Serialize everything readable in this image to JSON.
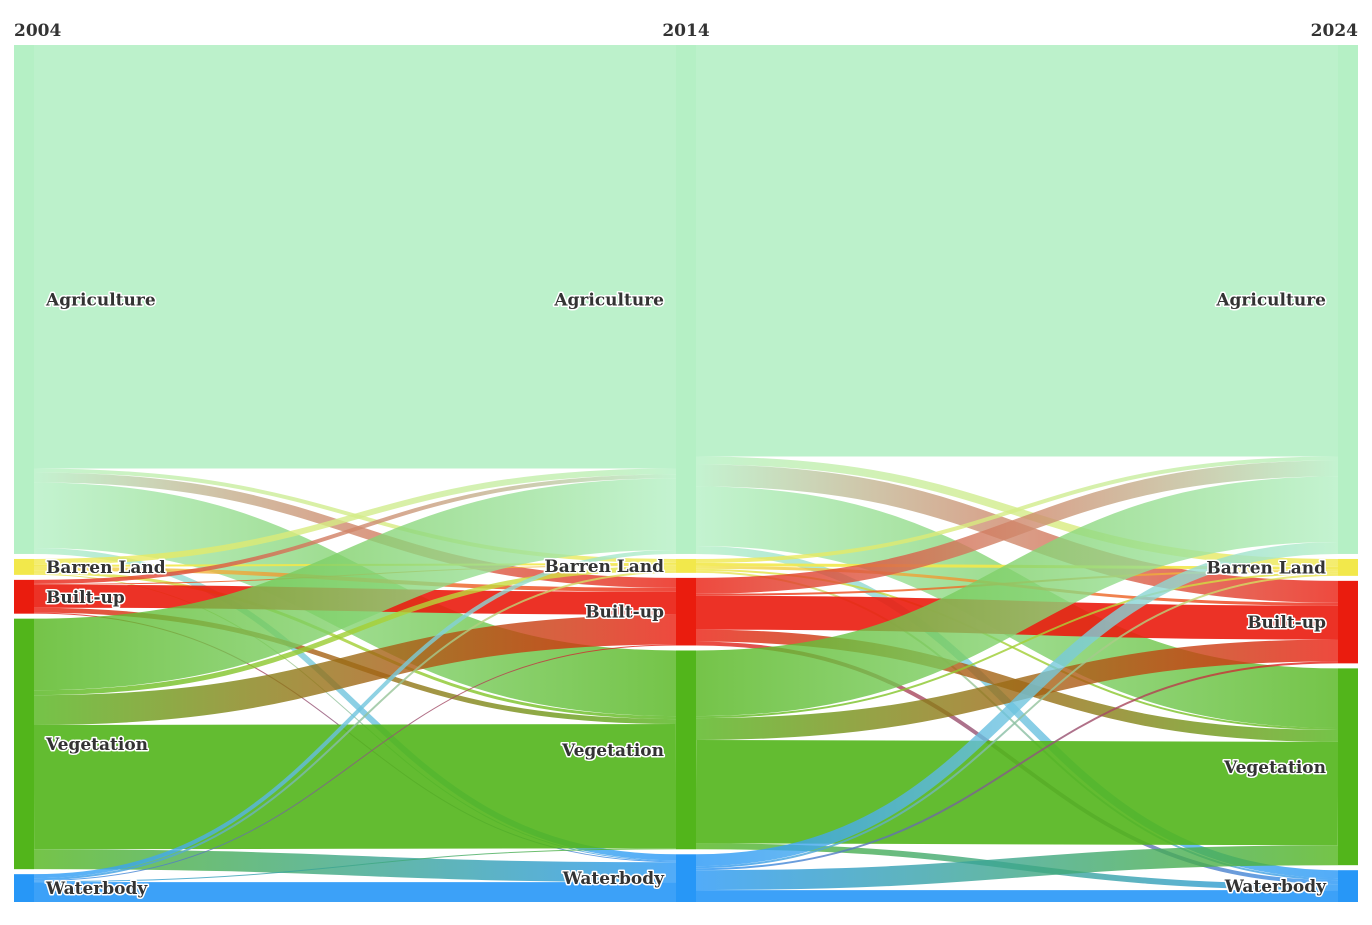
{
  "chart_data": {
    "type": "sankey",
    "years": [
      "2004",
      "2014",
      "2024"
    ],
    "categories": [
      "Agriculture",
      "Barren Land",
      "Built-up",
      "Vegetation",
      "Waterbody"
    ],
    "colors": {
      "Agriculture": "#b5f0c5",
      "Barren Land": "#f2e84b",
      "Built-up": "#ea1c0e",
      "Vegetation": "#52b51b",
      "Waterbody": "#2797f7"
    },
    "stage_totals": [
      {
        "year": "2004",
        "values": {
          "Agriculture": 512,
          "Barren Land": 16,
          "Built-up": 34,
          "Vegetation": 252,
          "Waterbody": 28
        }
      },
      {
        "year": "2014",
        "values": {
          "Agriculture": 512,
          "Barren Land": 14,
          "Built-up": 68,
          "Vegetation": 200,
          "Waterbody": 48
        }
      },
      {
        "year": "2024",
        "values": {
          "Agriculture": 512,
          "Barren Land": 17,
          "Built-up": 83,
          "Vegetation": 198,
          "Waterbody": 32
        }
      }
    ],
    "flows": [
      {
        "from_year": "2004",
        "to_year": "2014",
        "links": [
          {
            "source": "Agriculture",
            "target": "Agriculture",
            "value": 426
          },
          {
            "source": "Agriculture",
            "target": "Barren Land",
            "value": 4
          },
          {
            "source": "Agriculture",
            "target": "Built-up",
            "value": 10
          },
          {
            "source": "Agriculture",
            "target": "Vegetation",
            "value": 66
          },
          {
            "source": "Agriculture",
            "target": "Waterbody",
            "value": 6
          },
          {
            "source": "Barren Land",
            "target": "Agriculture",
            "value": 6
          },
          {
            "source": "Barren Land",
            "target": "Barren Land",
            "value": 2
          },
          {
            "source": "Barren Land",
            "target": "Built-up",
            "value": 4
          },
          {
            "source": "Barren Land",
            "target": "Vegetation",
            "value": 3
          },
          {
            "source": "Barren Land",
            "target": "Waterbody",
            "value": 1
          },
          {
            "source": "Built-up",
            "target": "Agriculture",
            "value": 4
          },
          {
            "source": "Built-up",
            "target": "Barren Land",
            "value": 1
          },
          {
            "source": "Built-up",
            "target": "Built-up",
            "value": 23
          },
          {
            "source": "Built-up",
            "target": "Vegetation",
            "value": 5
          },
          {
            "source": "Built-up",
            "target": "Waterbody",
            "value": 1
          },
          {
            "source": "Vegetation",
            "target": "Agriculture",
            "value": 72
          },
          {
            "source": "Vegetation",
            "target": "Barren Land",
            "value": 5
          },
          {
            "source": "Vegetation",
            "target": "Built-up",
            "value": 30
          },
          {
            "source": "Vegetation",
            "target": "Vegetation",
            "value": 125
          },
          {
            "source": "Vegetation",
            "target": "Waterbody",
            "value": 20
          },
          {
            "source": "Waterbody",
            "target": "Agriculture",
            "value": 4
          },
          {
            "source": "Waterbody",
            "target": "Barren Land",
            "value": 2
          },
          {
            "source": "Waterbody",
            "target": "Built-up",
            "value": 1
          },
          {
            "source": "Waterbody",
            "target": "Vegetation",
            "value": 1
          },
          {
            "source": "Waterbody",
            "target": "Waterbody",
            "value": 20
          }
        ]
      },
      {
        "from_year": "2014",
        "to_year": "2024",
        "links": [
          {
            "source": "Agriculture",
            "target": "Agriculture",
            "value": 414
          },
          {
            "source": "Agriculture",
            "target": "Barren Land",
            "value": 8
          },
          {
            "source": "Agriculture",
            "target": "Built-up",
            "value": 22
          },
          {
            "source": "Agriculture",
            "target": "Vegetation",
            "value": 60
          },
          {
            "source": "Agriculture",
            "target": "Waterbody",
            "value": 8
          },
          {
            "source": "Barren Land",
            "target": "Agriculture",
            "value": 4
          },
          {
            "source": "Barren Land",
            "target": "Barren Land",
            "value": 3
          },
          {
            "source": "Barren Land",
            "target": "Built-up",
            "value": 3
          },
          {
            "source": "Barren Land",
            "target": "Vegetation",
            "value": 2
          },
          {
            "source": "Barren Land",
            "target": "Waterbody",
            "value": 2
          },
          {
            "source": "Built-up",
            "target": "Agriculture",
            "value": 16
          },
          {
            "source": "Built-up",
            "target": "Barren Land",
            "value": 2
          },
          {
            "source": "Built-up",
            "target": "Built-up",
            "value": 34
          },
          {
            "source": "Built-up",
            "target": "Vegetation",
            "value": 12
          },
          {
            "source": "Built-up",
            "target": "Waterbody",
            "value": 4
          },
          {
            "source": "Vegetation",
            "target": "Agriculture",
            "value": 66
          },
          {
            "source": "Vegetation",
            "target": "Barren Land",
            "value": 2
          },
          {
            "source": "Vegetation",
            "target": "Built-up",
            "value": 22
          },
          {
            "source": "Vegetation",
            "target": "Vegetation",
            "value": 104
          },
          {
            "source": "Vegetation",
            "target": "Waterbody",
            "value": 6
          },
          {
            "source": "Waterbody",
            "target": "Agriculture",
            "value": 12
          },
          {
            "source": "Waterbody",
            "target": "Barren Land",
            "value": 2
          },
          {
            "source": "Waterbody",
            "target": "Built-up",
            "value": 2
          },
          {
            "source": "Waterbody",
            "target": "Vegetation",
            "value": 20
          },
          {
            "source": "Waterbody",
            "target": "Waterbody",
            "value": 12
          }
        ]
      }
    ]
  }
}
